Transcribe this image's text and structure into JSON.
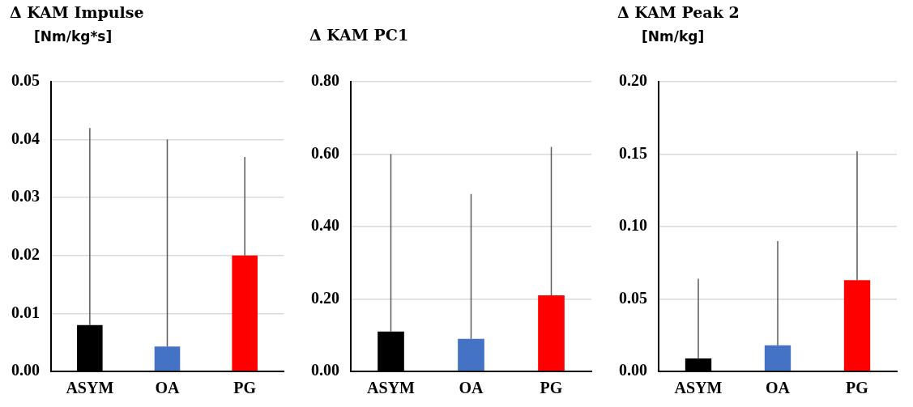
{
  "chart_data": [
    {
      "type": "bar",
      "title": "Δ KAM Impulse",
      "subtitle": "[Nm/kg*s]",
      "categories": [
        "ASYM",
        "OA",
        "PG"
      ],
      "values": [
        0.008,
        0.0043,
        0.02
      ],
      "colors": [
        "#000000",
        "#4472c4",
        "#ff0000"
      ],
      "errors": [
        [
          0.008,
          0.042
        ],
        [
          0.0043,
          0.04
        ],
        [
          0.02,
          0.037
        ]
      ],
      "ylim": [
        0,
        0.05
      ],
      "yticks": [
        {
          "value": 0,
          "label": "0.00"
        },
        {
          "value": 0.01,
          "label": "0.01"
        },
        {
          "value": 0.02,
          "label": "0.02"
        },
        {
          "value": 0.03,
          "label": "0.03"
        },
        {
          "value": 0.04,
          "label": "0.04"
        },
        {
          "value": 0.05,
          "label": "0.05"
        }
      ],
      "grid": "y",
      "legend": false
    },
    {
      "type": "bar",
      "title": "Δ KAM PC1",
      "categories": [
        "ASYM",
        "OA",
        "PG"
      ],
      "values": [
        0.11,
        0.09,
        0.21
      ],
      "colors": [
        "#000000",
        "#4472c4",
        "#ff0000"
      ],
      "errors": [
        [
          0.11,
          0.6
        ],
        [
          0.09,
          0.49
        ],
        [
          0.21,
          0.62
        ]
      ],
      "ylim": [
        0,
        0.8
      ],
      "yticks": [
        {
          "value": 0,
          "label": "0.00"
        },
        {
          "value": 0.2,
          "label": "0.20"
        },
        {
          "value": 0.4,
          "label": "0.40"
        },
        {
          "value": 0.6,
          "label": "0.60"
        },
        {
          "value": 0.8,
          "label": "0.80"
        }
      ],
      "grid": "y",
      "legend": false
    },
    {
      "type": "bar",
      "title": "Δ KAM Peak 2",
      "subtitle": "[Nm/kg]",
      "categories": [
        "ASYM",
        "OA",
        "PG"
      ],
      "values": [
        0.009,
        0.018,
        0.063
      ],
      "colors": [
        "#000000",
        "#4472c4",
        "#ff0000"
      ],
      "errors": [
        [
          0.009,
          0.064
        ],
        [
          0.018,
          0.09
        ],
        [
          0.063,
          0.152
        ]
      ],
      "ylim": [
        0,
        0.2
      ],
      "yticks": [
        {
          "value": 0,
          "label": "0.00"
        },
        {
          "value": 0.05,
          "label": "0.05"
        },
        {
          "value": 0.1,
          "label": "0.10"
        },
        {
          "value": 0.15,
          "label": "0.15"
        },
        {
          "value": 0.2,
          "label": "0.20"
        }
      ],
      "grid": "y",
      "legend": false
    }
  ]
}
